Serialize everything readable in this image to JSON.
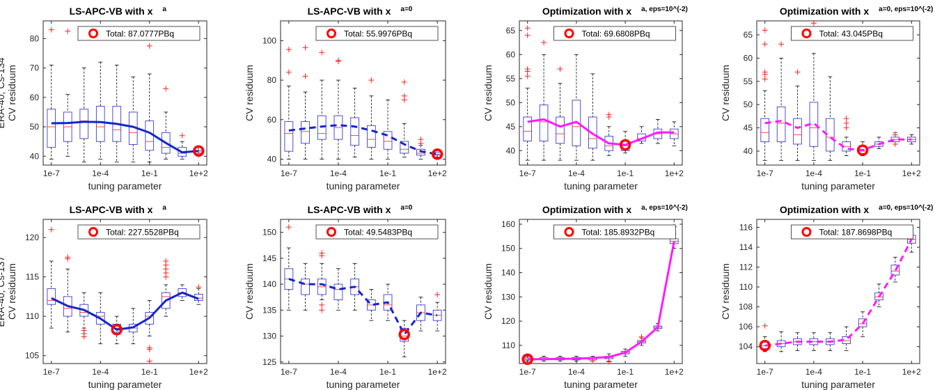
{
  "colors": {
    "box": "#3a3ad6",
    "median": "#ff3030",
    "outlier": "#ff2020",
    "whisker": "#000000",
    "ls_line": "#1426c8",
    "opt_line": "#ff1aff",
    "marker": "#ff0000"
  },
  "x_tick_labels": [
    "1e-7",
    "1e-4",
    "1e-1",
    "1e+2"
  ],
  "xlabel": "tuning parameter",
  "chart_data": [
    {
      "type": "box",
      "title": "LS-APC-VB with x",
      "title_sup": "a",
      "ylabel": "CV residuum",
      "row_label": "ERA-40, Cs-134",
      "legend": "Total: 87.0777PBq",
      "line_style": "solid",
      "line_color": "ls_line",
      "ylim": [
        37,
        86
      ],
      "yticks": [
        40,
        50,
        60,
        70,
        80
      ],
      "selected_index": 9,
      "boxes": [
        {
          "q1": 43,
          "med": 50,
          "q3": 56,
          "lo": 39,
          "hi": 71,
          "out": [
            83
          ]
        },
        {
          "q1": 45,
          "med": 50,
          "q3": 55,
          "lo": 40,
          "hi": 61,
          "out": [
            82.5
          ]
        },
        {
          "q1": 46,
          "med": 52,
          "q3": 56,
          "lo": 38,
          "hi": 70,
          "out": []
        },
        {
          "q1": 45,
          "med": 50,
          "q3": 57,
          "lo": 39,
          "hi": 72,
          "out": []
        },
        {
          "q1": 45,
          "med": 49,
          "q3": 57,
          "lo": 38,
          "hi": 71,
          "out": []
        },
        {
          "q1": 44,
          "med": 48,
          "q3": 55,
          "lo": 38,
          "hi": 67,
          "out": []
        },
        {
          "q1": 42,
          "med": 45,
          "q3": 52,
          "lo": 38,
          "hi": 68,
          "out": [
            77.5
          ]
        },
        {
          "q1": 41,
          "med": 43,
          "q3": 48,
          "lo": 39,
          "hi": 55,
          "out": [
            63
          ]
        },
        {
          "q1": 40,
          "med": 41,
          "q3": 43,
          "lo": 39,
          "hi": 45,
          "out": [
            47
          ]
        },
        {
          "q1": 41,
          "med": 41.5,
          "q3": 42,
          "lo": 40,
          "hi": 43,
          "out": [
            40.5
          ]
        }
      ],
      "line": [
        51.2,
        51.3,
        51.7,
        51.6,
        51.0,
        50.0,
        48.0,
        44.5,
        41.3,
        41.8
      ]
    },
    {
      "type": "box",
      "title": "LS-APC-VB with x",
      "title_sup": "a=0",
      "ylabel": "CV residuum",
      "row_label": "",
      "legend": "Total: 55.9976PBq",
      "line_style": "dashed",
      "line_color": "ls_line",
      "ylim": [
        37,
        110
      ],
      "yticks": [
        40,
        60,
        80,
        100
      ],
      "selected_index": 9,
      "boxes": [
        {
          "q1": 44,
          "med": 53,
          "q3": 59,
          "lo": 40,
          "hi": 77,
          "out": [
            95.5,
            84
          ]
        },
        {
          "q1": 48,
          "med": 54,
          "q3": 59,
          "lo": 40,
          "hi": 74,
          "out": [
            96.5,
            82
          ]
        },
        {
          "q1": 50,
          "med": 53,
          "q3": 62,
          "lo": 40,
          "hi": 80,
          "out": [
            94
          ]
        },
        {
          "q1": 50,
          "med": 56,
          "q3": 62,
          "lo": 40,
          "hi": 80,
          "out": [
            90,
            89.5
          ]
        },
        {
          "q1": 47,
          "med": 52,
          "q3": 61,
          "lo": 41,
          "hi": 76,
          "out": []
        },
        {
          "q1": 46,
          "med": 50,
          "q3": 57,
          "lo": 40,
          "hi": 72,
          "out": [
            80
          ]
        },
        {
          "q1": 45,
          "med": 49,
          "q3": 54,
          "lo": 40,
          "hi": 70,
          "out": []
        },
        {
          "q1": 43,
          "med": 45,
          "q3": 49,
          "lo": 41,
          "hi": 58,
          "out": [
            79,
            72,
            70
          ]
        },
        {
          "q1": 42,
          "med": 43,
          "q3": 45,
          "lo": 40,
          "hi": 47,
          "out": [
            50,
            48
          ]
        },
        {
          "q1": 42,
          "med": 42.5,
          "q3": 43.5,
          "lo": 41,
          "hi": 45,
          "out": []
        }
      ],
      "line": [
        54.5,
        55.5,
        56.5,
        57.2,
        56.5,
        54.5,
        52.0,
        47.5,
        44.0,
        42.5
      ]
    },
    {
      "type": "box",
      "title": "Optimization with x",
      "title_sup": "a, eps=10^(-2)",
      "ylabel": "CV residuum",
      "row_label": "",
      "legend": "Total: 69.6808PBq",
      "line_style": "solid",
      "line_color": "opt_line",
      "ylim": [
        37,
        67
      ],
      "yticks": [
        40,
        45,
        50,
        55,
        60,
        65
      ],
      "selected_index": 6,
      "boxes": [
        {
          "q1": 42,
          "med": 44,
          "q3": 47,
          "lo": 38,
          "hi": 53,
          "out": [
            65.5,
            64,
            57,
            56.5,
            55.5
          ]
        },
        {
          "q1": 42,
          "med": 46,
          "q3": 49.5,
          "lo": 38,
          "hi": 60,
          "out": [
            62.5
          ]
        },
        {
          "q1": 41.5,
          "med": 43.5,
          "q3": 47,
          "lo": 38,
          "hi": 54,
          "out": [
            57
          ]
        },
        {
          "q1": 41,
          "med": 45,
          "q3": 50.5,
          "lo": 38,
          "hi": 60,
          "out": []
        },
        {
          "q1": 40.5,
          "med": 42.5,
          "q3": 47,
          "lo": 38,
          "hi": 56,
          "out": []
        },
        {
          "q1": 40,
          "med": 41,
          "q3": 43,
          "lo": 39,
          "hi": 45,
          "out": [
            47.5,
            47
          ]
        },
        {
          "q1": 40,
          "med": 41,
          "q3": 42,
          "lo": 39.5,
          "hi": 44,
          "out": []
        },
        {
          "q1": 42,
          "med": 42.5,
          "q3": 43.5,
          "lo": 41.5,
          "hi": 45,
          "out": []
        },
        {
          "q1": 42.5,
          "med": 43.5,
          "q3": 44.5,
          "lo": 41.5,
          "hi": 46.5,
          "out": []
        },
        {
          "q1": 42.5,
          "med": 43.5,
          "q3": 44.5,
          "lo": 41,
          "hi": 46,
          "out": []
        }
      ],
      "line": [
        46.0,
        46.5,
        45.0,
        46.0,
        43.5,
        41.5,
        41.2,
        42.5,
        43.8,
        43.8
      ]
    },
    {
      "type": "box",
      "title": "Optimization with x",
      "title_sup": "a=0, eps=10^(-2)",
      "ylabel": "CV residuum",
      "row_label": "",
      "legend": "Total: 43.045PBq",
      "line_style": "dashed",
      "line_color": "opt_line",
      "ylim": [
        37,
        68
      ],
      "yticks": [
        40,
        45,
        50,
        55,
        60,
        65
      ],
      "selected_index": 6,
      "boxes": [
        {
          "q1": 42,
          "med": 44,
          "q3": 47,
          "lo": 38,
          "hi": 53,
          "out": [
            66,
            63,
            57,
            56.5,
            55.5
          ]
        },
        {
          "q1": 42,
          "med": 46,
          "q3": 49.5,
          "lo": 38,
          "hi": 60,
          "out": [
            63
          ]
        },
        {
          "q1": 41.5,
          "med": 43.5,
          "q3": 47,
          "lo": 38,
          "hi": 54,
          "out": [
            57
          ]
        },
        {
          "q1": 41,
          "med": 45,
          "q3": 50.5,
          "lo": 38,
          "hi": 61,
          "out": [
            67.5
          ]
        },
        {
          "q1": 40,
          "med": 43,
          "q3": 47,
          "lo": 38,
          "hi": 56,
          "out": []
        },
        {
          "q1": 40,
          "med": 41,
          "q3": 42,
          "lo": 39,
          "hi": 43,
          "out": [
            47,
            46,
            45
          ]
        },
        {
          "q1": 39.5,
          "med": 40,
          "q3": 41,
          "lo": 39,
          "hi": 42,
          "out": []
        },
        {
          "q1": 41,
          "med": 41.5,
          "q3": 42,
          "lo": 40.5,
          "hi": 43,
          "out": []
        },
        {
          "q1": 42,
          "med": 42.5,
          "q3": 43,
          "lo": 41.5,
          "hi": 44,
          "out": [
            43.5,
            41.5
          ]
        },
        {
          "q1": 42,
          "med": 42.5,
          "q3": 43,
          "lo": 41.5,
          "hi": 43.5,
          "out": []
        }
      ],
      "line": [
        46.0,
        46.5,
        45.0,
        46.0,
        43.0,
        40.5,
        40.2,
        41.5,
        42.5,
        42.5
      ]
    },
    {
      "type": "box",
      "title": "LS-APC-VB with x",
      "title_sup": "a",
      "ylabel": "CV residuum",
      "row_label": "ERA-40, Cs-137",
      "legend": "Total: 227.5528PBq",
      "line_style": "solid",
      "line_color": "ls_line",
      "ylim": [
        104,
        122.3
      ],
      "yticks": [
        105,
        110,
        115,
        120
      ],
      "selected_index": 4,
      "boxes": [
        {
          "q1": 111.5,
          "med": 112,
          "q3": 113.5,
          "lo": 108.5,
          "hi": 117,
          "out": [
            121
          ]
        },
        {
          "q1": 110,
          "med": 111,
          "q3": 112.5,
          "lo": 108,
          "hi": 116,
          "out": [
            117.5,
            117.3
          ]
        },
        {
          "q1": 110,
          "med": 110.5,
          "q3": 111.5,
          "lo": 108.5,
          "hi": 113,
          "out": [
            108.2,
            107.8,
            107.4
          ]
        },
        {
          "q1": 109,
          "med": 110,
          "q3": 110.5,
          "lo": 106.5,
          "hi": 113,
          "out": []
        },
        {
          "q1": 108,
          "med": 108.5,
          "q3": 109,
          "lo": 106.5,
          "hi": 110,
          "out": []
        },
        {
          "q1": 108,
          "med": 108.5,
          "q3": 109,
          "lo": 106.5,
          "hi": 111,
          "out": []
        },
        {
          "q1": 109,
          "med": 110,
          "q3": 110.5,
          "lo": 107.5,
          "hi": 112,
          "out": [
            106,
            105.8,
            104.3
          ]
        },
        {
          "q1": 111,
          "med": 112.5,
          "q3": 113,
          "lo": 110,
          "hi": 114,
          "out": [
            117,
            116.5,
            116,
            115.5,
            115
          ]
        },
        {
          "q1": 112.5,
          "med": 113,
          "q3": 113.5,
          "lo": 112,
          "hi": 114,
          "out": []
        },
        {
          "q1": 112,
          "med": 112.3,
          "q3": 112.8,
          "lo": 111.5,
          "hi": 113.5,
          "out": [
            113.7
          ]
        }
      ],
      "line": [
        112.3,
        111.3,
        110.8,
        109.7,
        108.3,
        108.6,
        109.8,
        112.0,
        113.0,
        112.2
      ]
    },
    {
      "type": "box",
      "title": "LS-APC-VB with x",
      "title_sup": "a=0",
      "ylabel": "CV residuum",
      "row_label": "",
      "legend": "Total: 49.5483PBq",
      "line_style": "dashed",
      "line_color": "ls_line",
      "ylim": [
        124.7,
        152.5
      ],
      "yticks": [
        125,
        130,
        135,
        140,
        145,
        150
      ],
      "selected_index": 7,
      "boxes": [
        {
          "q1": 139,
          "med": 141,
          "q3": 143,
          "lo": 135,
          "hi": 147,
          "out": [
            151
          ]
        },
        {
          "q1": 138,
          "med": 140,
          "q3": 141,
          "lo": 135,
          "hi": 144,
          "out": []
        },
        {
          "q1": 138,
          "med": 139.5,
          "q3": 141,
          "lo": 137,
          "hi": 144,
          "out": [
            146,
            145.5,
            136,
            135
          ]
        },
        {
          "q1": 137,
          "med": 139,
          "q3": 140,
          "lo": 135,
          "hi": 143,
          "out": []
        },
        {
          "q1": 138,
          "med": 139.5,
          "q3": 141,
          "lo": 135,
          "hi": 144,
          "out": []
        },
        {
          "q1": 135,
          "med": 136,
          "q3": 137,
          "lo": 133,
          "hi": 139,
          "out": []
        },
        {
          "q1": 135,
          "med": 136,
          "q3": 138,
          "lo": 133,
          "hi": 140,
          "out": []
        },
        {
          "q1": 129,
          "med": 130,
          "q3": 131.5,
          "lo": 126,
          "hi": 133,
          "out": []
        },
        {
          "q1": 133,
          "med": 134.5,
          "q3": 136,
          "lo": 131,
          "hi": 137.5,
          "out": []
        },
        {
          "q1": 133,
          "med": 134,
          "q3": 135,
          "lo": 131,
          "hi": 136.5,
          "out": [
            138
          ]
        }
      ],
      "line": [
        141.0,
        140.0,
        140.0,
        139.0,
        139.5,
        136.0,
        136.5,
        130.3,
        134.5,
        134.0
      ]
    },
    {
      "type": "box",
      "title": "Optimization with x",
      "title_sup": "a, eps=10^(-2)",
      "ylabel": "CV residuum",
      "row_label": "",
      "legend": "Total: 185.8932PBq",
      "line_style": "solid",
      "line_color": "opt_line",
      "ylim": [
        102.5,
        162
      ],
      "yticks": [
        110,
        120,
        130,
        140,
        150,
        160
      ],
      "selected_index": 0,
      "boxes": [
        {
          "q1": 104,
          "med": 104.5,
          "q3": 105,
          "lo": 103.5,
          "hi": 105.5,
          "out": []
        },
        {
          "q1": 104,
          "med": 104.5,
          "q3": 105,
          "lo": 103.5,
          "hi": 105.5,
          "out": []
        },
        {
          "q1": 104,
          "med": 104.5,
          "q3": 105,
          "lo": 103.5,
          "hi": 105.5,
          "out": []
        },
        {
          "q1": 104,
          "med": 104.5,
          "q3": 105,
          "lo": 103.5,
          "hi": 105.5,
          "out": []
        },
        {
          "q1": 104,
          "med": 104.5,
          "q3": 105,
          "lo": 103.5,
          "hi": 105.5,
          "out": [
            103.5
          ]
        },
        {
          "q1": 104.5,
          "med": 105,
          "q3": 105.5,
          "lo": 103.5,
          "hi": 106.5,
          "out": [
            103.2
          ]
        },
        {
          "q1": 106.5,
          "med": 107,
          "q3": 107.5,
          "lo": 105.5,
          "hi": 108.5,
          "out": []
        },
        {
          "q1": 111,
          "med": 111.5,
          "q3": 112,
          "lo": 110,
          "hi": 113,
          "out": [
            113.5
          ]
        },
        {
          "q1": 117,
          "med": 117.5,
          "q3": 118,
          "lo": 116,
          "hi": 119,
          "out": []
        },
        {
          "q1": 152,
          "med": 153,
          "q3": 154,
          "lo": 150,
          "hi": 156,
          "out": [
            159
          ]
        }
      ],
      "line": [
        104.3,
        104.3,
        104.4,
        104.5,
        104.8,
        105.2,
        107.0,
        111.5,
        117.5,
        153.0
      ]
    },
    {
      "type": "box",
      "title": "Optimization with x",
      "title_sup": "a=0, eps=10^(-2)",
      "ylabel": "CV residuum",
      "row_label": "",
      "legend": "Total: 187.8698PBq",
      "line_style": "dashed",
      "line_color": "opt_line",
      "ylim": [
        102.3,
        116.8
      ],
      "yticks": [
        104,
        106,
        108,
        110,
        112,
        114,
        116
      ],
      "selected_index": 0,
      "boxes": [
        {
          "q1": 103.8,
          "med": 104.1,
          "q3": 104.5,
          "lo": 103.5,
          "hi": 105,
          "out": [
            106.1
          ]
        },
        {
          "q1": 104,
          "med": 104.3,
          "q3": 104.6,
          "lo": 103.5,
          "hi": 105.5,
          "out": []
        },
        {
          "q1": 104.2,
          "med": 104.5,
          "q3": 104.8,
          "lo": 103.6,
          "hi": 105.4,
          "out": []
        },
        {
          "q1": 104.2,
          "med": 104.5,
          "q3": 104.8,
          "lo": 103.6,
          "hi": 105.4,
          "out": []
        },
        {
          "q1": 104.2,
          "med": 104.5,
          "q3": 104.8,
          "lo": 103.6,
          "hi": 105.4,
          "out": []
        },
        {
          "q1": 104.3,
          "med": 104.6,
          "q3": 105,
          "lo": 103.6,
          "hi": 106,
          "out": []
        },
        {
          "q1": 106,
          "med": 106.3,
          "q3": 106.8,
          "lo": 105,
          "hi": 107.5,
          "out": []
        },
        {
          "q1": 108.7,
          "med": 109,
          "q3": 109.4,
          "lo": 108,
          "hi": 110.3,
          "out": []
        },
        {
          "q1": 111.2,
          "med": 111.6,
          "q3": 112.2,
          "lo": 110.5,
          "hi": 113,
          "out": []
        },
        {
          "q1": 114.4,
          "med": 114.8,
          "q3": 115.2,
          "lo": 113.5,
          "hi": 115.8,
          "out": []
        }
      ],
      "line": [
        104.1,
        104.3,
        104.5,
        104.5,
        104.5,
        104.7,
        106.3,
        109.0,
        111.6,
        114.8
      ]
    }
  ]
}
